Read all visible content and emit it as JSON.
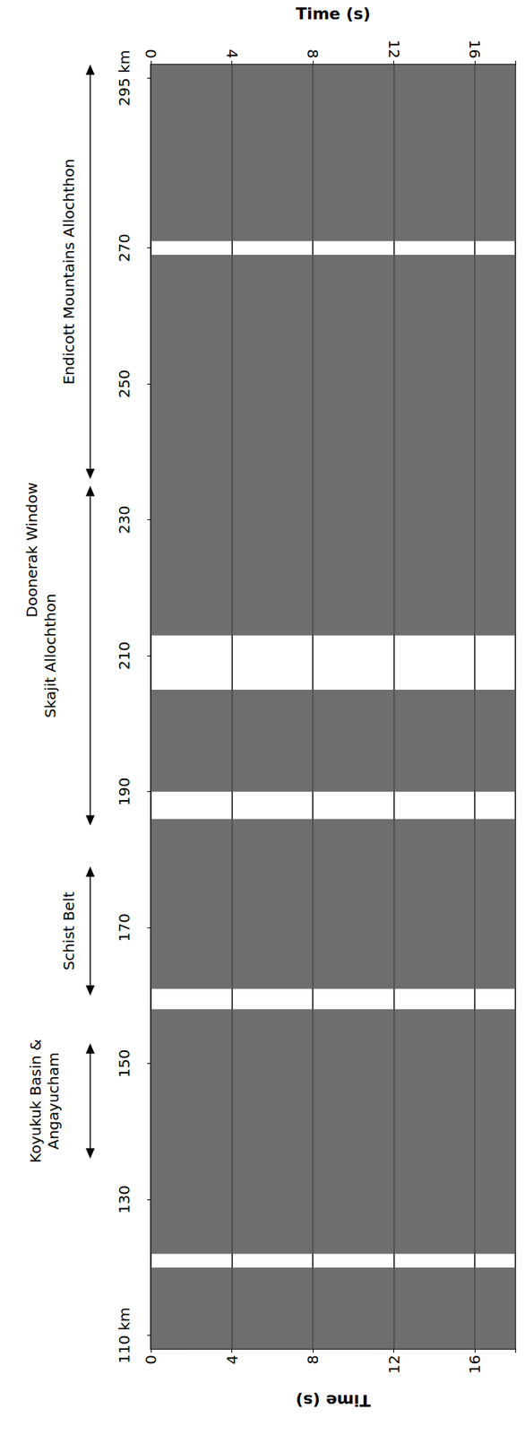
{
  "chart_data": {
    "type": "section",
    "x_label": "Time (s)",
    "xlim": [
      0,
      18
    ],
    "xticks": [
      0,
      4,
      8,
      12,
      16
    ],
    "ylim": [
      108,
      297
    ],
    "yticks": [
      {
        "value": 110,
        "label": "110 km"
      },
      130,
      150,
      170,
      190,
      210,
      230,
      250,
      270,
      {
        "value": 295,
        "label": "295 km"
      }
    ],
    "grid": true,
    "color": "#555555",
    "segments": [
      [
        108,
        120
      ],
      [
        122,
        158
      ],
      [
        161,
        186
      ],
      [
        190,
        205
      ],
      [
        213,
        269
      ],
      [
        271,
        297
      ]
    ],
    "annotations": [
      {
        "text": "Koyukuk Basin & Angayucham",
        "range": [
          136,
          153
        ]
      },
      {
        "text": "Schist Belt",
        "range": [
          160,
          179
        ]
      },
      {
        "text": "Skajit Allochthon",
        "range": [
          185,
          235
        ]
      },
      {
        "text": "Doonerak Window",
        "range": [
          235,
          236
        ]
      },
      {
        "text": "Endicott Mountains Allochthon",
        "range": [
          236,
          297
        ]
      }
    ]
  }
}
